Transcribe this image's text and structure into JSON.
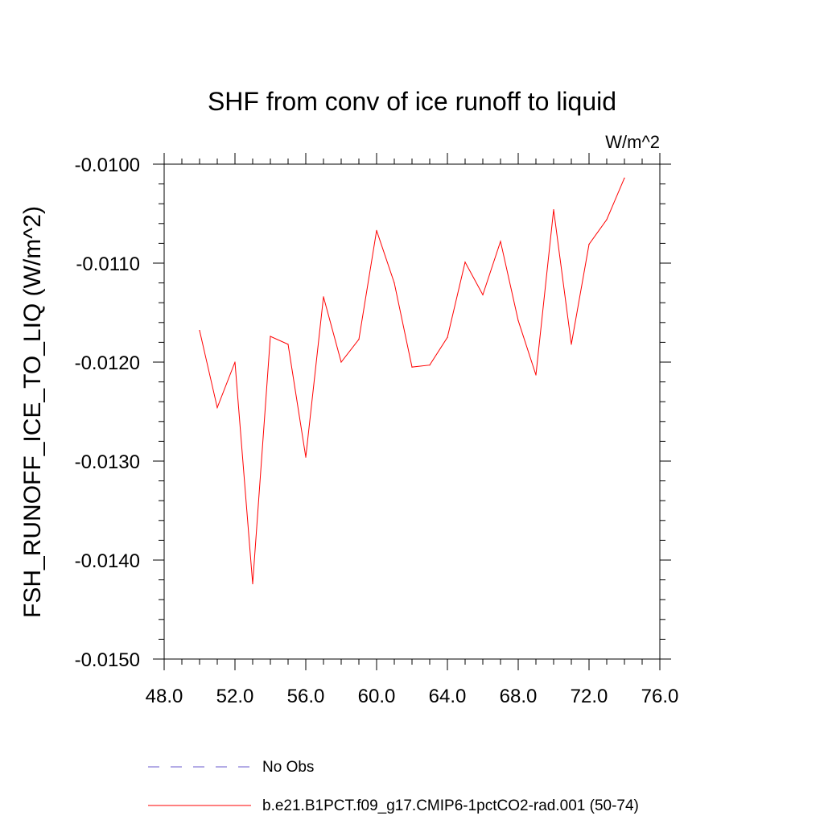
{
  "chart_data": {
    "type": "line",
    "title": "SHF from conv of ice runoff to liquid",
    "units": "W/m^2",
    "ylabel": "FSH_RUNOFF_ICE_TO_LIQ  (W/m^2)",
    "xlabel": "",
    "xlim": [
      48.0,
      76.0
    ],
    "ylim": [
      -0.015,
      -0.01
    ],
    "x_ticks": [
      "48.0",
      "52.0",
      "56.0",
      "60.0",
      "64.0",
      "68.0",
      "72.0",
      "76.0"
    ],
    "y_ticks": [
      "-0.0100",
      "-0.0110",
      "-0.0120",
      "-0.0130",
      "-0.0140",
      "-0.0150"
    ],
    "grid": false,
    "legend_position": "bottom",
    "series": [
      {
        "name": "No Obs",
        "color": "#6a5acd",
        "style": "dashed",
        "x": [],
        "values": []
      },
      {
        "name": "b.e21.B1PCT.f09_g17.CMIP6-1pctCO2-rad.001 (50-74)",
        "color": "#ff0000",
        "style": "solid",
        "x": [
          50,
          51,
          52,
          53,
          54,
          55,
          56,
          57,
          58,
          59,
          60,
          61,
          62,
          63,
          64,
          65,
          66,
          67,
          68,
          69,
          70,
          71,
          72,
          73,
          74
        ],
        "values": [
          -0.01168,
          -0.01246,
          -0.012,
          -0.01424,
          -0.01174,
          -0.01182,
          -0.01296,
          -0.01134,
          -0.012,
          -0.01177,
          -0.01067,
          -0.0112,
          -0.01205,
          -0.01203,
          -0.01175,
          -0.01099,
          -0.01132,
          -0.01078,
          -0.01158,
          -0.01213,
          -0.01046,
          -0.01182,
          -0.01081,
          -0.01056,
          -0.01014
        ]
      }
    ]
  }
}
